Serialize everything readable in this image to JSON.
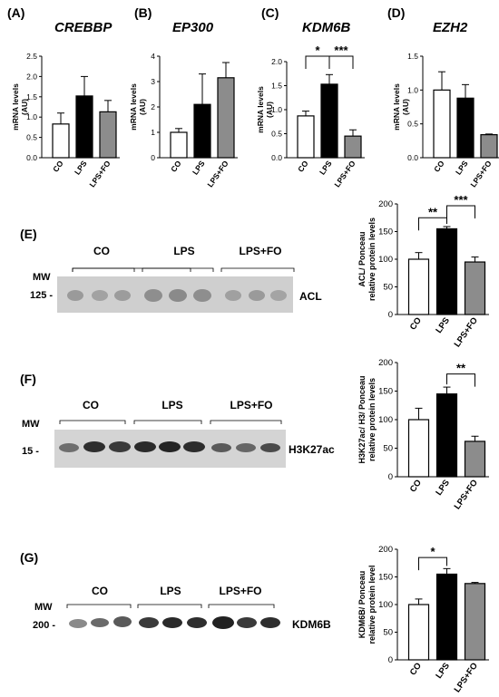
{
  "panels": {
    "A": {
      "label": "(A)",
      "title": "CREBBP"
    },
    "B": {
      "label": "(B)",
      "title": "EP300"
    },
    "C": {
      "label": "(C)",
      "title": "KDM6B"
    },
    "D": {
      "label": "(D)",
      "title": "EZH2"
    },
    "E": {
      "label": "(E)"
    },
    "F": {
      "label": "(F)"
    },
    "G": {
      "label": "(G)"
    }
  },
  "blots": {
    "E": {
      "mw_label": "MW",
      "mw_value": "125 -",
      "protein": "ACL",
      "groups": [
        "CO",
        "LPS",
        "LPS+FO"
      ]
    },
    "F": {
      "mw_label": "MW",
      "mw_value": "15 -",
      "protein": "H3K27ac",
      "groups": [
        "CO",
        "LPS",
        "LPS+FO"
      ]
    },
    "G": {
      "mw_label": "MW",
      "mw_value": "200 -",
      "protein": "KDM6B",
      "groups": [
        "CO",
        "LPS",
        "LPS+FO"
      ]
    }
  },
  "colors": {
    "CO": "#ffffff",
    "LPS": "#000000",
    "LPS+FO": "#8c8c8c"
  },
  "chart_data": [
    {
      "id": "A",
      "type": "bar",
      "title": "CREBBP",
      "ylabel": "mRNA levels (AU)",
      "categories": [
        "CO",
        "LPS",
        "LPS+FO"
      ],
      "values": [
        0.83,
        1.52,
        1.13
      ],
      "errors": [
        0.27,
        0.48,
        0.28
      ],
      "ylim": [
        0,
        2.5
      ],
      "yticks": [
        "0.0",
        "0.5",
        "1.0",
        "1.5",
        "2.0",
        "2.5"
      ],
      "significance": []
    },
    {
      "id": "B",
      "type": "bar",
      "title": "EP300",
      "ylabel": "mRNA levels (AU)",
      "categories": [
        "CO",
        "LPS",
        "LPS+FO"
      ],
      "values": [
        1.0,
        2.1,
        3.15
      ],
      "errors": [
        0.15,
        1.2,
        0.6
      ],
      "ylim": [
        0,
        4
      ],
      "yticks": [
        "0",
        "1",
        "2",
        "3",
        "4"
      ],
      "significance": []
    },
    {
      "id": "C",
      "type": "bar",
      "title": "KDM6B",
      "ylabel": "mRNA levels (AU)",
      "categories": [
        "CO",
        "LPS",
        "LPS+FO"
      ],
      "values": [
        0.87,
        1.53,
        0.45
      ],
      "errors": [
        0.1,
        0.2,
        0.13
      ],
      "ylim": [
        0,
        2.0
      ],
      "yticks": [
        "0.0",
        "0.5",
        "1.0",
        "1.5",
        "2.0"
      ],
      "significance": [
        {
          "from": 0,
          "to": 1,
          "text": "*"
        },
        {
          "from": 1,
          "to": 2,
          "text": "***"
        }
      ]
    },
    {
      "id": "D",
      "type": "bar",
      "title": "EZH2",
      "ylabel": "mRNA levels (AU)",
      "categories": [
        "CO",
        "LPS",
        "LPS+FO"
      ],
      "values": [
        1.0,
        0.88,
        0.34
      ],
      "errors": [
        0.27,
        0.2,
        0.01
      ],
      "ylim": [
        0,
        1.5
      ],
      "yticks": [
        "0.0",
        "0.5",
        "1.0",
        "1.5"
      ],
      "significance": []
    },
    {
      "id": "E",
      "type": "bar",
      "title": "",
      "ylabel": "ACL/ Ponceau relative protein levels",
      "categories": [
        "CO",
        "LPS",
        "LPS+FO"
      ],
      "values": [
        100,
        155,
        95
      ],
      "errors": [
        12,
        4,
        9
      ],
      "ylim": [
        0,
        200
      ],
      "yticks": [
        "0",
        "50",
        "100",
        "150",
        "200"
      ],
      "significance": [
        {
          "from": 0,
          "to": 1,
          "text": "**"
        },
        {
          "from": 1,
          "to": 2,
          "text": "***"
        }
      ]
    },
    {
      "id": "F",
      "type": "bar",
      "title": "",
      "ylabel": "H3K27ac/ H3/ Ponceau relative protein levels",
      "categories": [
        "CO",
        "LPS",
        "LPS+FO"
      ],
      "values": [
        100,
        145,
        62
      ],
      "errors": [
        20,
        12,
        9
      ],
      "ylim": [
        0,
        200
      ],
      "yticks": [
        "0",
        "50",
        "100",
        "150",
        "200"
      ],
      "significance": [
        {
          "from": 1,
          "to": 2,
          "text": "**"
        }
      ]
    },
    {
      "id": "G",
      "type": "bar",
      "title": "",
      "ylabel": "KDM6B/ Ponceau relative protein level",
      "categories": [
        "CO",
        "LPS",
        "LPS+FO"
      ],
      "values": [
        100,
        155,
        138
      ],
      "errors": [
        10,
        10,
        2
      ],
      "ylim": [
        0,
        200
      ],
      "yticks": [
        "0",
        "50",
        "100",
        "150",
        "200"
      ],
      "significance": [
        {
          "from": 0,
          "to": 1,
          "text": "*"
        }
      ]
    }
  ]
}
